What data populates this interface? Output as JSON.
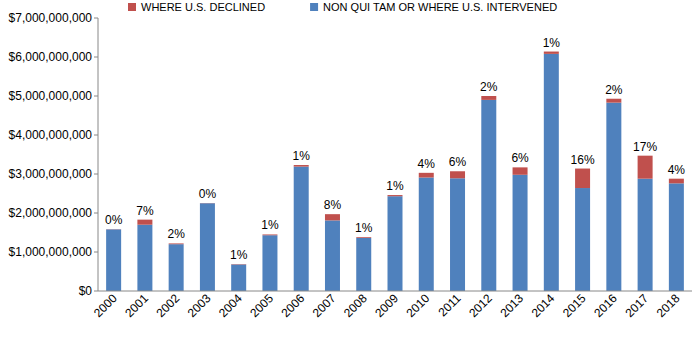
{
  "chart_data": {
    "type": "bar",
    "stacked": true,
    "grid": false,
    "legend": "top",
    "categories": [
      "2000",
      "2001",
      "2002",
      "2003",
      "2004",
      "2005",
      "2006",
      "2007",
      "2008",
      "2009",
      "2010",
      "2011",
      "2012",
      "2013",
      "2014",
      "2015",
      "2016",
      "2017",
      "2018"
    ],
    "series": [
      {
        "name": "NON QUI TAM OR WHERE U.S. INTERVENED",
        "color": "#4f81bd",
        "values": [
          1580000000,
          1700000000,
          1200000000,
          2250000000,
          680000000,
          1430000000,
          3190000000,
          1810000000,
          1360000000,
          2430000000,
          2910000000,
          2890000000,
          4900000000,
          2980000000,
          6080000000,
          2640000000,
          4830000000,
          2880000000,
          2760000000
        ]
      },
      {
        "name": "WHERE U.S. DECLINED",
        "color": "#c0504d",
        "values": [
          5000000,
          130000000,
          20000000,
          5000000,
          10000000,
          20000000,
          40000000,
          160000000,
          20000000,
          30000000,
          120000000,
          180000000,
          100000000,
          190000000,
          60000000,
          500000000,
          100000000,
          590000000,
          120000000
        ]
      }
    ],
    "annotations": [
      "0%",
      "7%",
      "2%",
      "0%",
      "1%",
      "1%",
      "1%",
      "8%",
      "1%",
      "1%",
      "4%",
      "6%",
      "2%",
      "6%",
      "1%",
      "16%",
      "2%",
      "17%",
      "4%"
    ],
    "ylim": [
      0,
      7000000000
    ],
    "yticks": [
      {
        "value": 0,
        "label": "$0"
      },
      {
        "value": 1000000000,
        "label": "$1,000,000,000"
      },
      {
        "value": 2000000000,
        "label": "$2,000,000,000"
      },
      {
        "value": 3000000000,
        "label": "$3,000,000,000"
      },
      {
        "value": 4000000000,
        "label": "$4,000,000,000"
      },
      {
        "value": 5000000000,
        "label": "$5,000,000,000"
      },
      {
        "value": 6000000000,
        "label": "$6,000,000,000"
      },
      {
        "value": 7000000000,
        "label": "$7,000,000,000"
      }
    ]
  }
}
